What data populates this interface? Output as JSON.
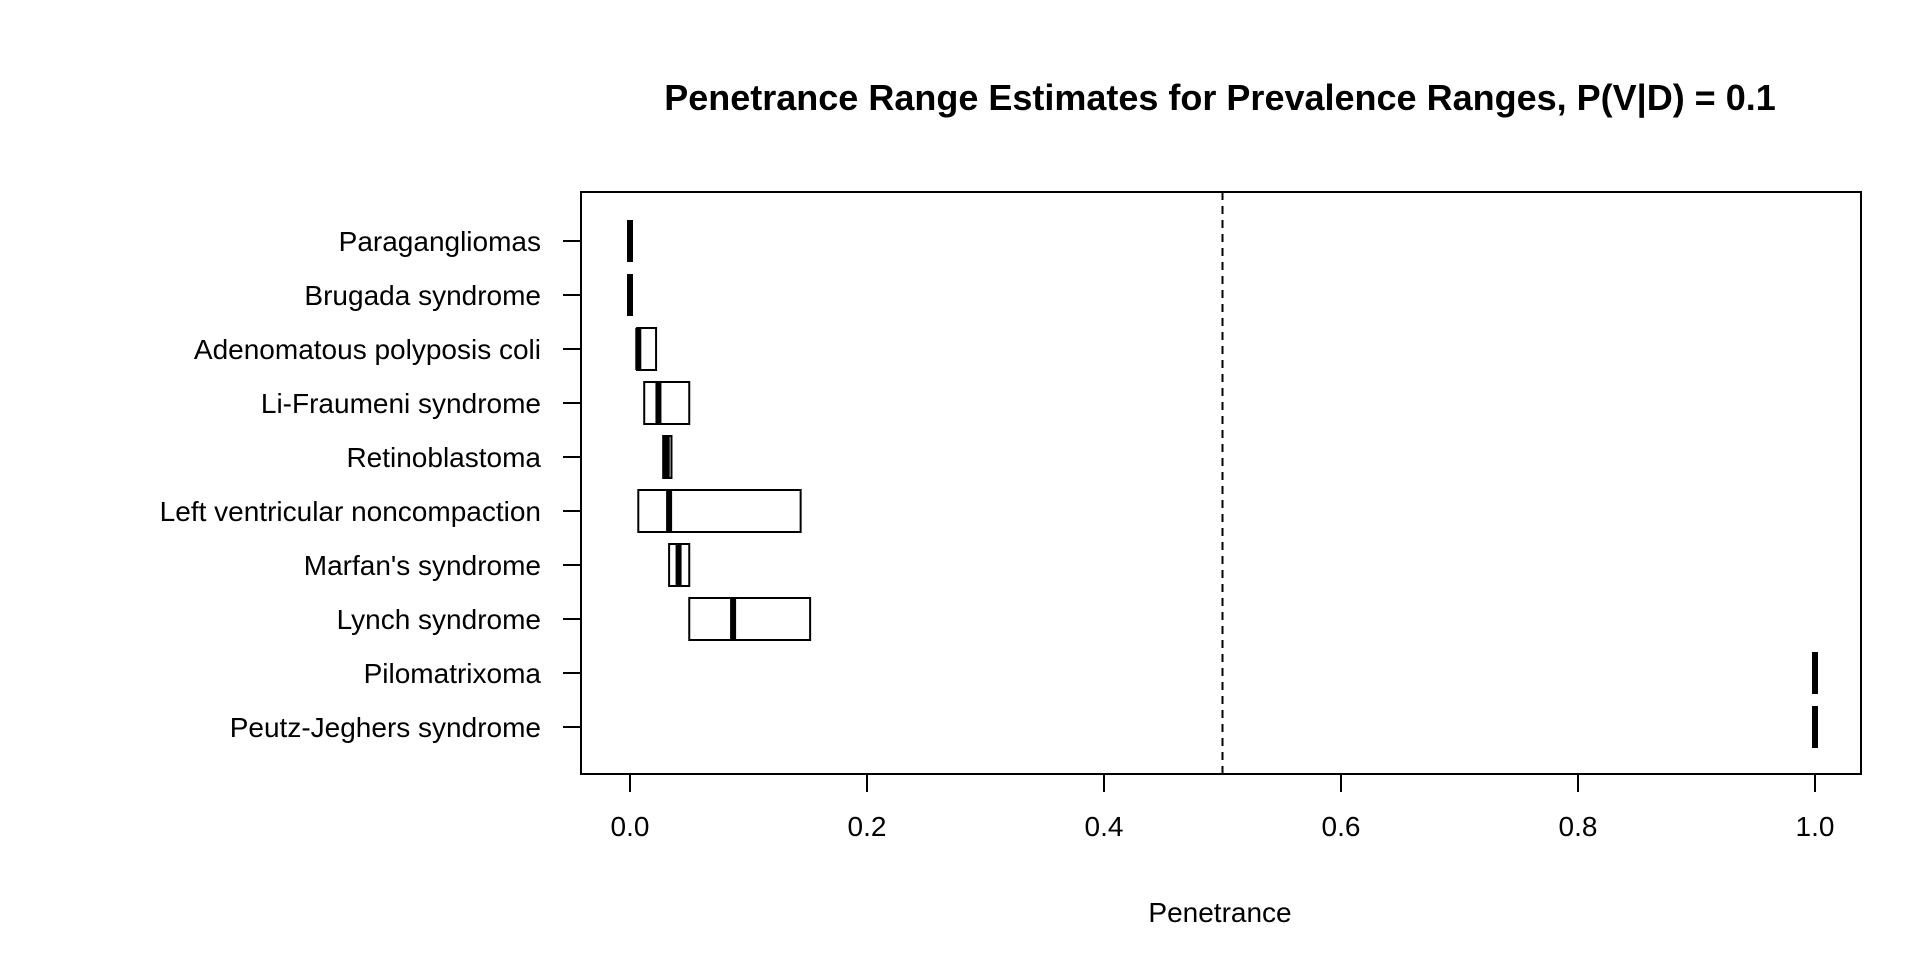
{
  "chart_data": {
    "type": "boxplot-horizontal",
    "title": "Penetrance Range Estimates for Prevalence Ranges, P(V|D) = 0.1",
    "xlabel": "Penetrance",
    "ylabel": "",
    "xlim": [
      -0.04,
      1.04
    ],
    "xticks": [
      "0.0",
      "0.2",
      "0.4",
      "0.6",
      "0.8",
      "1.0"
    ],
    "xtick_values": [
      0.0,
      0.2,
      0.4,
      0.6,
      0.8,
      1.0
    ],
    "reference_line": {
      "x": 0.5,
      "style": "dashed"
    },
    "grid": false,
    "categories": [
      "Paragangliomas",
      "Brugada syndrome",
      "Adenomatous polyposis coli",
      "Li-Fraumeni syndrome",
      "Retinoblastoma",
      "Left ventricular noncompaction",
      "Marfan's syndrome",
      "Lynch syndrome",
      "Pilomatrixoma",
      "Peutz-Jeghers syndrome"
    ],
    "ranges": [
      {
        "low": 0.0,
        "median": 0.0,
        "high": 0.0
      },
      {
        "low": 0.0,
        "median": 0.0,
        "high": 0.0
      },
      {
        "low": 0.006,
        "median": 0.007,
        "high": 0.022
      },
      {
        "low": 0.012,
        "median": 0.024,
        "high": 0.05
      },
      {
        "low": 0.028,
        "median": 0.031,
        "high": 0.035
      },
      {
        "low": 0.007,
        "median": 0.033,
        "high": 0.144
      },
      {
        "low": 0.033,
        "median": 0.041,
        "high": 0.05
      },
      {
        "low": 0.05,
        "median": 0.087,
        "high": 0.152
      },
      {
        "low": 1.0,
        "median": 1.0,
        "high": 1.0
      },
      {
        "low": 1.0,
        "median": 1.0,
        "high": 1.0
      }
    ]
  }
}
